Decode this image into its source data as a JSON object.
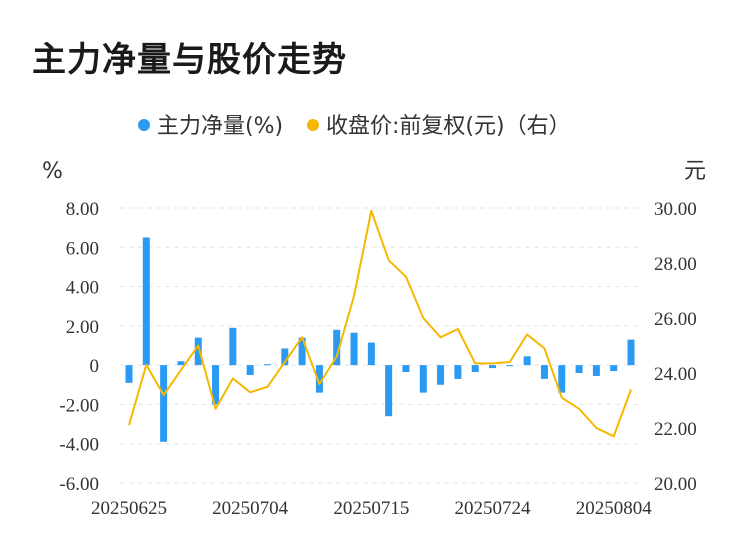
{
  "title": "主力净量与股价走势",
  "chart_data": {
    "type": "bar+line",
    "legend": {
      "position": "top-center",
      "items": [
        {
          "label": "主力净量(%)",
          "color": "#2b9af3"
        },
        {
          "label": "收盘价:前复权(元)（右）",
          "color": "#f5b800"
        }
      ]
    },
    "left_axis": {
      "unit": "%",
      "ticks": [
        "8.00",
        "6.00",
        "4.00",
        "2.00",
        "0",
        "-2.00",
        "-4.00",
        "-6.00"
      ],
      "range": [
        -6,
        8
      ]
    },
    "right_axis": {
      "unit": "元",
      "ticks": [
        "30.00",
        "28.00",
        "26.00",
        "24.00",
        "22.00",
        "20.00"
      ],
      "range": [
        20,
        30
      ]
    },
    "x_tick_labels": [
      "20250625",
      "20250704",
      "20250715",
      "20250724",
      "20250804"
    ],
    "x_tick_indices": [
      0,
      7,
      14,
      21,
      28
    ],
    "series": [
      {
        "name": "主力净量(%)",
        "type": "bar",
        "values": [
          -0.9,
          6.5,
          -3.9,
          0.2,
          1.4,
          -2.0,
          1.9,
          -0.5,
          0.05,
          0.85,
          1.4,
          -1.4,
          1.8,
          1.65,
          1.15,
          -2.6,
          -0.35,
          -1.4,
          -1.0,
          -0.7,
          -0.35,
          -0.15,
          0.0,
          0.45,
          -0.7,
          -1.4,
          -0.4,
          -0.55,
          -0.3,
          1.3
        ]
      },
      {
        "name": "收盘价:前复权(元)（右）",
        "type": "line",
        "values": [
          22.1,
          24.3,
          23.2,
          24.1,
          25.0,
          22.7,
          23.8,
          23.3,
          23.5,
          24.4,
          25.3,
          23.6,
          24.6,
          26.8,
          29.9,
          28.1,
          27.5,
          26.0,
          25.3,
          25.6,
          24.35,
          24.35,
          24.4,
          25.4,
          24.9,
          23.1,
          22.7,
          22.0,
          21.7,
          23.4
        ]
      }
    ]
  }
}
